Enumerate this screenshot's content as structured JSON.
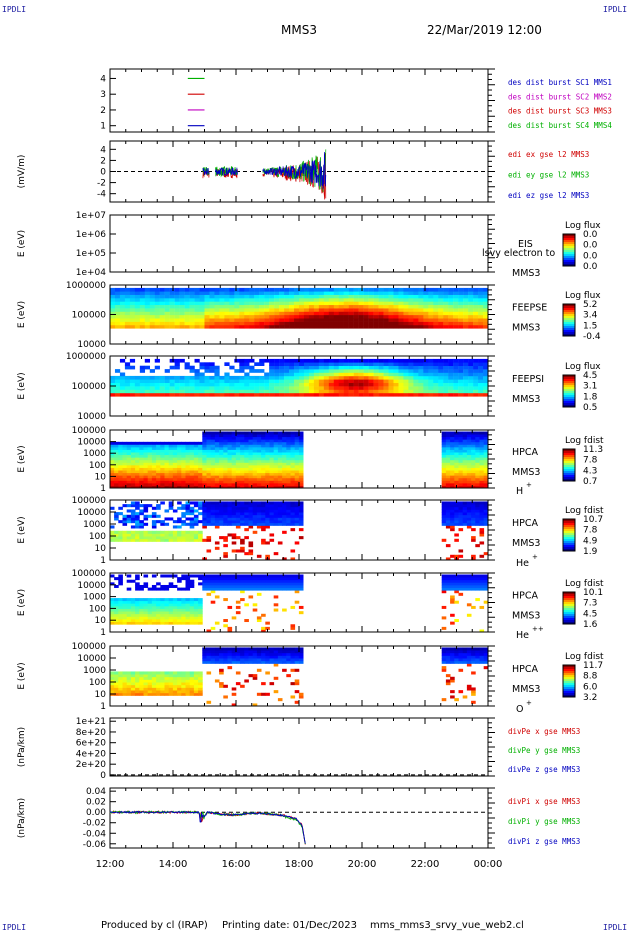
{
  "corner_label": "IPDLI",
  "header": {
    "spacecraft": "MMS3",
    "datetime": "22/Mar/2019 12:00"
  },
  "footer": {
    "produced": "Produced by cl (IRAP)",
    "printed": "Printing date: 01/Dec/2023",
    "script": "mms_mms3_srvy_vue_web2.cl"
  },
  "colors": {
    "red": "#d00000",
    "green": "#00b000",
    "blue": "#0000c0",
    "magenta": "#c000c0",
    "axis": "#000000"
  },
  "chart_data": [
    {
      "type": "line",
      "id": "burst",
      "yticks": [
        "1",
        "2",
        "3",
        "4"
      ],
      "ylim": [
        0.6,
        4.6
      ],
      "legend": [
        {
          "text": "des dist burst SC1 MMS1",
          "color": "#0000c0"
        },
        {
          "text": "des dist burst SC2 MMS2",
          "color": "#c000c0"
        },
        {
          "text": "des dist burst SC3 MMS3",
          "color": "#d00000"
        },
        {
          "text": "des dist burst SC4 MMS4",
          "color": "#00b000"
        }
      ],
      "series": [
        {
          "color": "#00b000",
          "x": [
            14.47,
            15.0
          ],
          "y": [
            4,
            4
          ]
        },
        {
          "color": "#d00000",
          "x": [
            14.47,
            15.0
          ],
          "y": [
            3,
            3
          ]
        },
        {
          "color": "#c000c0",
          "x": [
            14.47,
            15.0
          ],
          "y": [
            2,
            2
          ]
        },
        {
          "color": "#0000c0",
          "x": [
            14.47,
            15.0
          ],
          "y": [
            1,
            1
          ]
        }
      ]
    },
    {
      "type": "line",
      "id": "edi",
      "ylabel": "(mV/m)",
      "yticks": [
        "-4",
        "-2",
        "0",
        "2",
        "4"
      ],
      "ylim": [
        -5.5,
        5.5
      ],
      "legend": [
        {
          "text": "edi ex gse l2 MMS3",
          "color": "#d00000"
        },
        {
          "text": "edi ey gse l2 MMS3",
          "color": "#00b000"
        },
        {
          "text": "edi ez gse l2 MMS3",
          "color": "#0000c0"
        }
      ],
      "intervals": [
        [
          14.95,
          15.15
        ],
        [
          15.35,
          16.05
        ],
        [
          16.85,
          18.85
        ]
      ],
      "envelope": [
        [
          16.85,
          0.5
        ],
        [
          17.5,
          1.2
        ],
        [
          18.2,
          2.0
        ],
        [
          18.6,
          3.2
        ],
        [
          18.85,
          5.0
        ]
      ]
    },
    {
      "type": "heatmap",
      "id": "eis",
      "ylabel": "E (eV)",
      "yticks": [
        "1e+04",
        "1e+05",
        "1e+06",
        "1e+07"
      ],
      "instrument": [
        "EIS",
        "MMS3"
      ],
      "overlay": "lsvy electron to",
      "cbar_title": "Log flux",
      "cbar_ticks": [
        "0.0",
        "0.0",
        "0.0",
        "0.0"
      ]
    },
    {
      "type": "heatmap",
      "id": "feepse",
      "ylabel": "E (eV)",
      "yticks": [
        "10000",
        "100000",
        "1000000"
      ],
      "instrument": [
        "FEEPSE",
        "MMS3"
      ],
      "cbar_title": "Log flux",
      "cbar_ticks": [
        "5.2",
        "3.4",
        "1.5",
        "-0.4"
      ]
    },
    {
      "type": "heatmap",
      "id": "feepsi",
      "ylabel": "E (eV)",
      "yticks": [
        "10000",
        "100000",
        "1000000"
      ],
      "instrument": [
        "FEEPSI",
        "MMS3"
      ],
      "cbar_title": "Log flux",
      "cbar_ticks": [
        "4.5",
        "3.1",
        "1.8",
        "0.5"
      ]
    },
    {
      "type": "heatmap",
      "id": "hpca_h",
      "ylabel": "E (eV)",
      "yticks": [
        "1",
        "10",
        "100",
        "1000",
        "10000",
        "100000"
      ],
      "instrument": [
        "HPCA",
        "MMS3"
      ],
      "species": "H",
      "charge": "+",
      "cbar_title": "Log fdist",
      "cbar_ticks": [
        "11.3",
        "7.8",
        "4.3",
        "0.7"
      ]
    },
    {
      "type": "heatmap",
      "id": "hpca_he",
      "ylabel": "E (eV)",
      "yticks": [
        "1",
        "10",
        "100",
        "1000",
        "10000",
        "100000"
      ],
      "instrument": [
        "HPCA",
        "MMS3"
      ],
      "species": "He",
      "charge": "+",
      "cbar_title": "Log fdist",
      "cbar_ticks": [
        "10.7",
        "7.8",
        "4.9",
        "1.9"
      ]
    },
    {
      "type": "heatmap",
      "id": "hpca_he2",
      "ylabel": "E (eV)",
      "yticks": [
        "1",
        "10",
        "100",
        "1000",
        "10000",
        "100000"
      ],
      "instrument": [
        "HPCA",
        "MMS3"
      ],
      "species": "He",
      "charge": "++",
      "cbar_title": "Log fdist",
      "cbar_ticks": [
        "10.1",
        "7.3",
        "4.5",
        "1.6"
      ]
    },
    {
      "type": "heatmap",
      "id": "hpca_o",
      "ylabel": "E (eV)",
      "yticks": [
        "1",
        "10",
        "100",
        "1000",
        "10000",
        "100000"
      ],
      "instrument": [
        "HPCA",
        "MMS3"
      ],
      "species": "O",
      "charge": "+",
      "cbar_title": "Log fdist",
      "cbar_ticks": [
        "11.7",
        "8.8",
        "6.0",
        "3.2"
      ]
    },
    {
      "type": "line",
      "id": "divpe",
      "ylabel": "(nPa/km)",
      "yticks": [
        "0",
        "2e+20",
        "4e+20",
        "6e+20",
        "8e+20",
        "1e+21"
      ],
      "ylim": [
        -2e+19,
        1.06e+21
      ],
      "legend": [
        {
          "text": "divPe x gse MMS3",
          "color": "#d00000"
        },
        {
          "text": "divPe y gse MMS3",
          "color": "#00b000"
        },
        {
          "text": "divPe z gse MMS3",
          "color": "#0000c0"
        }
      ]
    },
    {
      "type": "line",
      "id": "divpi",
      "ylabel": "(nPa/km)",
      "yticks": [
        "-0.06",
        "-0.04",
        "-0.02",
        "0.00",
        "0.02",
        "0.04"
      ],
      "ylim": [
        -0.068,
        0.046
      ],
      "legend": [
        {
          "text": "divPi x gse MMS3",
          "color": "#d00000"
        },
        {
          "text": "divPi y gse MMS3",
          "color": "#00b000"
        },
        {
          "text": "divPi z gse MMS3",
          "color": "#0000c0"
        }
      ],
      "x": [
        12.0,
        14.0,
        14.8,
        14.95,
        15.1,
        15.5,
        16.0,
        16.5,
        17.0,
        17.5,
        17.9,
        18.1,
        18.2
      ],
      "y": [
        0.0,
        0.0,
        0.0,
        -0.012,
        0.0,
        -0.004,
        -0.005,
        -0.002,
        -0.003,
        -0.006,
        -0.012,
        -0.025,
        -0.06
      ]
    }
  ],
  "xaxis": {
    "ticks": [
      "12:00",
      "14:00",
      "16:00",
      "18:00",
      "20:00",
      "22:00",
      "00:00"
    ],
    "range": [
      12,
      24
    ]
  }
}
